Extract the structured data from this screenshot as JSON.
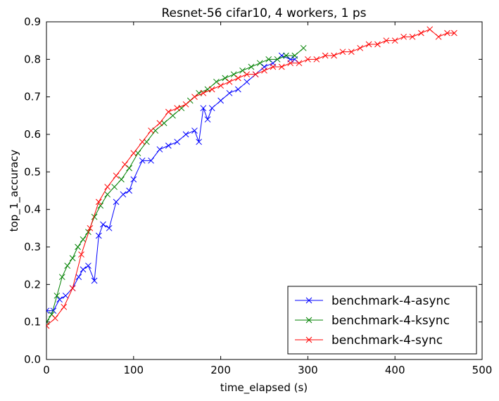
{
  "chart_data": {
    "type": "line",
    "title": "Resnet-56 cifar10, 4 workers, 1 ps",
    "xlabel": "time_elapsed (s)",
    "ylabel": "top_1_accuracy",
    "xlim": [
      0,
      500
    ],
    "ylim": [
      0,
      0.9
    ],
    "xticks": [
      0,
      100,
      200,
      300,
      400,
      500
    ],
    "yticks": [
      0.0,
      0.1,
      0.2,
      0.3,
      0.4,
      0.5,
      0.6,
      0.7,
      0.8,
      0.9
    ],
    "xtick_labels": [
      "0",
      "100",
      "200",
      "300",
      "400",
      "500"
    ],
    "ytick_labels": [
      "0.0",
      "0.1",
      "0.2",
      "0.3",
      "0.4",
      "0.5",
      "0.6",
      "0.7",
      "0.8",
      "0.9"
    ],
    "grid": false,
    "legend_position": "lower-right",
    "marker": "x",
    "series": [
      {
        "name": "benchmark-4-async",
        "color": "#0000ff",
        "x": [
          0,
          8,
          15,
          22,
          30,
          37,
          42,
          48,
          55,
          60,
          65,
          72,
          80,
          88,
          95,
          100,
          110,
          120,
          130,
          140,
          150,
          160,
          170,
          175,
          180,
          185,
          190,
          200,
          210,
          220,
          230,
          240,
          250,
          260,
          270,
          280,
          285
        ],
        "y": [
          0.13,
          0.13,
          0.16,
          0.17,
          0.19,
          0.22,
          0.24,
          0.25,
          0.21,
          0.33,
          0.36,
          0.35,
          0.42,
          0.44,
          0.45,
          0.48,
          0.53,
          0.53,
          0.56,
          0.57,
          0.58,
          0.6,
          0.61,
          0.58,
          0.67,
          0.64,
          0.67,
          0.69,
          0.71,
          0.72,
          0.74,
          0.76,
          0.78,
          0.79,
          0.81,
          0.8,
          0.8
        ]
      },
      {
        "name": "benchmark-4-ksync",
        "color": "#008000",
        "x": [
          0,
          6,
          12,
          18,
          24,
          30,
          36,
          42,
          48,
          55,
          62,
          70,
          78,
          86,
          95,
          105,
          115,
          125,
          135,
          145,
          155,
          165,
          175,
          185,
          195,
          205,
          215,
          225,
          235,
          245,
          255,
          265,
          275,
          285,
          295
        ],
        "y": [
          0.1,
          0.12,
          0.17,
          0.22,
          0.25,
          0.27,
          0.3,
          0.32,
          0.34,
          0.38,
          0.41,
          0.44,
          0.46,
          0.48,
          0.51,
          0.55,
          0.58,
          0.61,
          0.63,
          0.65,
          0.67,
          0.69,
          0.71,
          0.72,
          0.74,
          0.75,
          0.76,
          0.77,
          0.78,
          0.79,
          0.8,
          0.8,
          0.81,
          0.81,
          0.83
        ]
      },
      {
        "name": "benchmark-4-sync",
        "color": "#ff0000",
        "x": [
          0,
          10,
          20,
          30,
          40,
          50,
          60,
          70,
          80,
          90,
          100,
          110,
          120,
          130,
          140,
          150,
          160,
          170,
          180,
          190,
          200,
          210,
          220,
          230,
          240,
          250,
          260,
          270,
          280,
          290,
          300,
          310,
          320,
          330,
          340,
          350,
          360,
          370,
          380,
          390,
          400,
          410,
          420,
          430,
          440,
          450,
          460,
          468
        ],
        "y": [
          0.09,
          0.11,
          0.14,
          0.19,
          0.28,
          0.35,
          0.42,
          0.46,
          0.49,
          0.52,
          0.55,
          0.58,
          0.61,
          0.63,
          0.66,
          0.67,
          0.68,
          0.7,
          0.71,
          0.72,
          0.73,
          0.74,
          0.75,
          0.76,
          0.76,
          0.77,
          0.78,
          0.78,
          0.79,
          0.79,
          0.8,
          0.8,
          0.81,
          0.81,
          0.82,
          0.82,
          0.83,
          0.84,
          0.84,
          0.85,
          0.85,
          0.86,
          0.86,
          0.87,
          0.88,
          0.86,
          0.87,
          0.87
        ]
      }
    ]
  }
}
